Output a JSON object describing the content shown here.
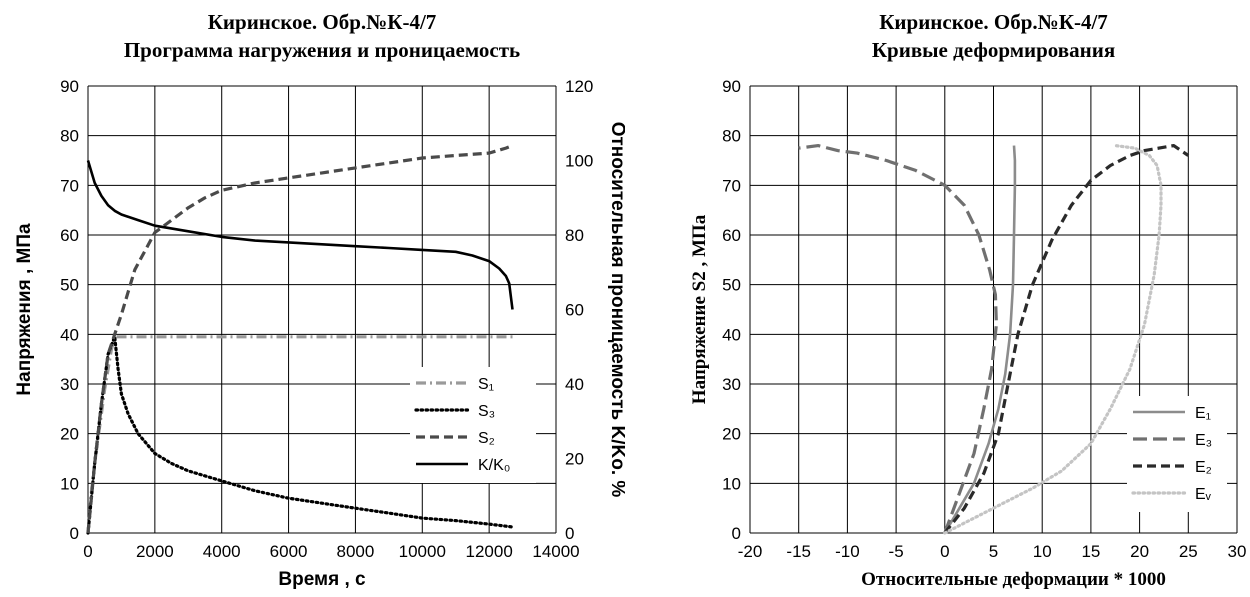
{
  "chart_data": [
    {
      "type": "line",
      "title": [
        "Киринское. Обр.№К-4/7",
        "Программа нагружения и проницаемость"
      ],
      "xlabel": "Время , с",
      "ylabel": "Напряжения , МПа",
      "y2label": "Относительная проницаемость K/Ko. %",
      "xlim": [
        0,
        14000
      ],
      "ylim": [
        0,
        90
      ],
      "y2lim": [
        0,
        120
      ],
      "xticks": [
        0,
        2000,
        4000,
        6000,
        8000,
        10000,
        12000,
        14000
      ],
      "yticks": [
        0,
        10,
        20,
        30,
        40,
        50,
        60,
        70,
        80,
        90
      ],
      "y2ticks": [
        0,
        20,
        40,
        60,
        80,
        100,
        120
      ],
      "grid": true,
      "legend_position": "bottom-right",
      "series": [
        {
          "name": "S₁",
          "axis": "left",
          "style": "dashdot",
          "color": "#9a9a9a",
          "x": [
            0,
            100,
            200,
            300,
            400,
            500,
            600,
            700,
            800,
            1000,
            2000,
            4000,
            6000,
            8000,
            10000,
            12000,
            12700
          ],
          "y": [
            0,
            8,
            14,
            19,
            24,
            29,
            33,
            37,
            39.5,
            39.5,
            39.5,
            39.5,
            39.5,
            39.5,
            39.5,
            39.5,
            39.5
          ]
        },
        {
          "name": "S₃",
          "axis": "left",
          "style": "dotted",
          "color": "#000000",
          "x": [
            0,
            200,
            400,
            600,
            800,
            900,
            1000,
            1200,
            1500,
            2000,
            2500,
            3000,
            4000,
            5000,
            6000,
            7000,
            8000,
            9000,
            10000,
            11000,
            12000,
            12700
          ],
          "y": [
            0,
            14,
            26,
            36,
            39.5,
            33,
            28,
            24,
            20,
            16,
            14,
            12.5,
            10.5,
            8.5,
            7,
            6,
            5,
            4,
            3,
            2.5,
            1.8,
            1.2
          ]
        },
        {
          "name": "S₂",
          "axis": "left",
          "style": "dashed",
          "color": "#4a4a4a",
          "x": [
            0,
            200,
            400,
            600,
            800,
            1000,
            1200,
            1400,
            1600,
            1800,
            2000,
            2500,
            3000,
            3500,
            4000,
            5000,
            6000,
            7000,
            8000,
            9000,
            10000,
            11000,
            12000,
            12500,
            12700
          ],
          "y": [
            0,
            14,
            26,
            36,
            40,
            44,
            48.5,
            53,
            55.5,
            58,
            60.5,
            63,
            65.5,
            67.5,
            69,
            70.5,
            71.5,
            72.5,
            73.5,
            74.5,
            75.5,
            76,
            76.5,
            77.5,
            78
          ]
        },
        {
          "name": "K/K₀",
          "axis": "right",
          "style": "solid",
          "color": "#000000",
          "x": [
            0,
            200,
            400,
            600,
            800,
            1000,
            1500,
            2000,
            3000,
            4000,
            5000,
            6000,
            7000,
            8000,
            9000,
            10000,
            11000,
            11500,
            12000,
            12300,
            12500,
            12600,
            12700
          ],
          "y": [
            100,
            94,
            90.5,
            88,
            86.5,
            85.5,
            84,
            82.5,
            81,
            79.5,
            78.5,
            78,
            77.5,
            77,
            76.5,
            76,
            75.5,
            74.5,
            73,
            71,
            69,
            67,
            60
          ]
        }
      ]
    },
    {
      "type": "line",
      "title": [
        "Киринское. Обр.№К-4/7",
        "Кривые деформирования"
      ],
      "xlabel": "Относительные деформации * 1000",
      "ylabel": "Напряжение S2 , МПа",
      "xlim": [
        -20,
        30
      ],
      "ylim": [
        0,
        90
      ],
      "xticks": [
        -20,
        -15,
        -10,
        -5,
        0,
        5,
        10,
        15,
        20,
        25,
        30
      ],
      "yticks": [
        0,
        10,
        20,
        30,
        40,
        50,
        60,
        70,
        80,
        90
      ],
      "grid": true,
      "legend_position": "bottom-right",
      "series": [
        {
          "name": "E₁",
          "style": "solid",
          "color": "#8c8c8c",
          "x": [
            0,
            1.5,
            3,
            4.5,
            5.5,
            6.2,
            6.7,
            7,
            7.1,
            7.2,
            7.2,
            7.1
          ],
          "y": [
            0,
            5,
            10,
            18,
            25,
            32,
            40,
            50,
            60,
            70,
            75,
            78
          ]
        },
        {
          "name": "E₃",
          "style": "longdash",
          "color": "#707070",
          "x": [
            0,
            1.5,
            3,
            4,
            4.8,
            5.3,
            5.2,
            4.6,
            3.5,
            2,
            0,
            -3,
            -6,
            -9,
            -11,
            -13,
            -15
          ],
          "y": [
            0,
            8,
            16,
            25,
            33,
            42,
            48,
            53,
            60,
            66,
            70,
            73,
            75,
            76.5,
            77,
            78,
            77.5
          ]
        },
        {
          "name": "E₂",
          "style": "dashed",
          "color": "#2a2a2a",
          "x": [
            0,
            2,
            4,
            5.5,
            6.5,
            7.5,
            9,
            11,
            13,
            15,
            17,
            19,
            20.5,
            22,
            23.5,
            25
          ],
          "y": [
            0,
            5,
            12,
            20,
            30,
            40,
            50,
            59,
            66,
            71,
            74,
            76,
            77,
            77.5,
            78,
            76
          ]
        },
        {
          "name": "Eᵥ",
          "style": "dotted",
          "color": "#c4c4c4",
          "x": [
            0,
            3,
            6,
            9,
            12,
            15,
            17,
            19,
            20.5,
            21.5,
            22,
            22.2,
            22.2,
            21.8,
            21,
            19.5,
            17.5
          ],
          "y": [
            0,
            3,
            6,
            9,
            12.5,
            18,
            25,
            33,
            42,
            52,
            60,
            66,
            70,
            74,
            76,
            77.5,
            78
          ]
        }
      ]
    }
  ]
}
